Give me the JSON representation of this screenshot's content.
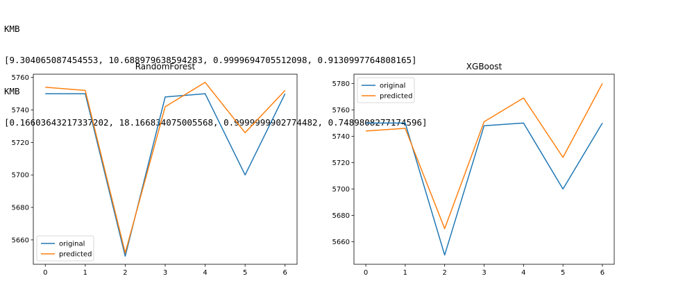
{
  "output": {
    "lines": [
      "KMB",
      "[9.304065087454553, 10.688979638594283, 0.9999694705512098, 0.9130997764808165]",
      "KMB",
      "[0.16603643217337202, 18.166834075005568, 0.9999999902774482, 0.7489808277174596]"
    ]
  },
  "chart_data": [
    {
      "type": "line",
      "title": "RandomForest",
      "x": [
        0,
        1,
        2,
        3,
        4,
        5,
        6
      ],
      "series": [
        {
          "name": "original",
          "color": "#1f77b4",
          "values": [
            5750,
            5750,
            5650,
            5748,
            5750,
            5700,
            5750
          ]
        },
        {
          "name": "predicted",
          "color": "#ff7f0e",
          "values": [
            5754,
            5752,
            5652,
            5742,
            5757,
            5726,
            5752
          ]
        }
      ],
      "xticks": [
        "0",
        "1",
        "2",
        "3",
        "4",
        "5",
        "6"
      ],
      "yticks": [
        "5660",
        "5680",
        "5700",
        "5720",
        "5740",
        "5760"
      ],
      "xlim": [
        -0.3,
        6.3
      ],
      "ylim": [
        5645,
        5762
      ],
      "legend": "lower-left",
      "grid": false
    },
    {
      "type": "line",
      "title": "XGBoost",
      "x": [
        0,
        1,
        2,
        3,
        4,
        5,
        6
      ],
      "series": [
        {
          "name": "original",
          "color": "#1f77b4",
          "values": [
            5750,
            5750,
            5650,
            5748,
            5750,
            5700,
            5750
          ]
        },
        {
          "name": "predicted",
          "color": "#ff7f0e",
          "values": [
            5744,
            5746,
            5670,
            5751,
            5769,
            5724,
            5780
          ]
        }
      ],
      "xticks": [
        "0",
        "1",
        "2",
        "3",
        "4",
        "5",
        "6"
      ],
      "yticks": [
        "5660",
        "5680",
        "5700",
        "5720",
        "5740",
        "5760",
        "5780"
      ],
      "xlim": [
        -0.3,
        6.3
      ],
      "ylim": [
        5643,
        5787
      ],
      "legend": "upper-left",
      "grid": false
    }
  ]
}
